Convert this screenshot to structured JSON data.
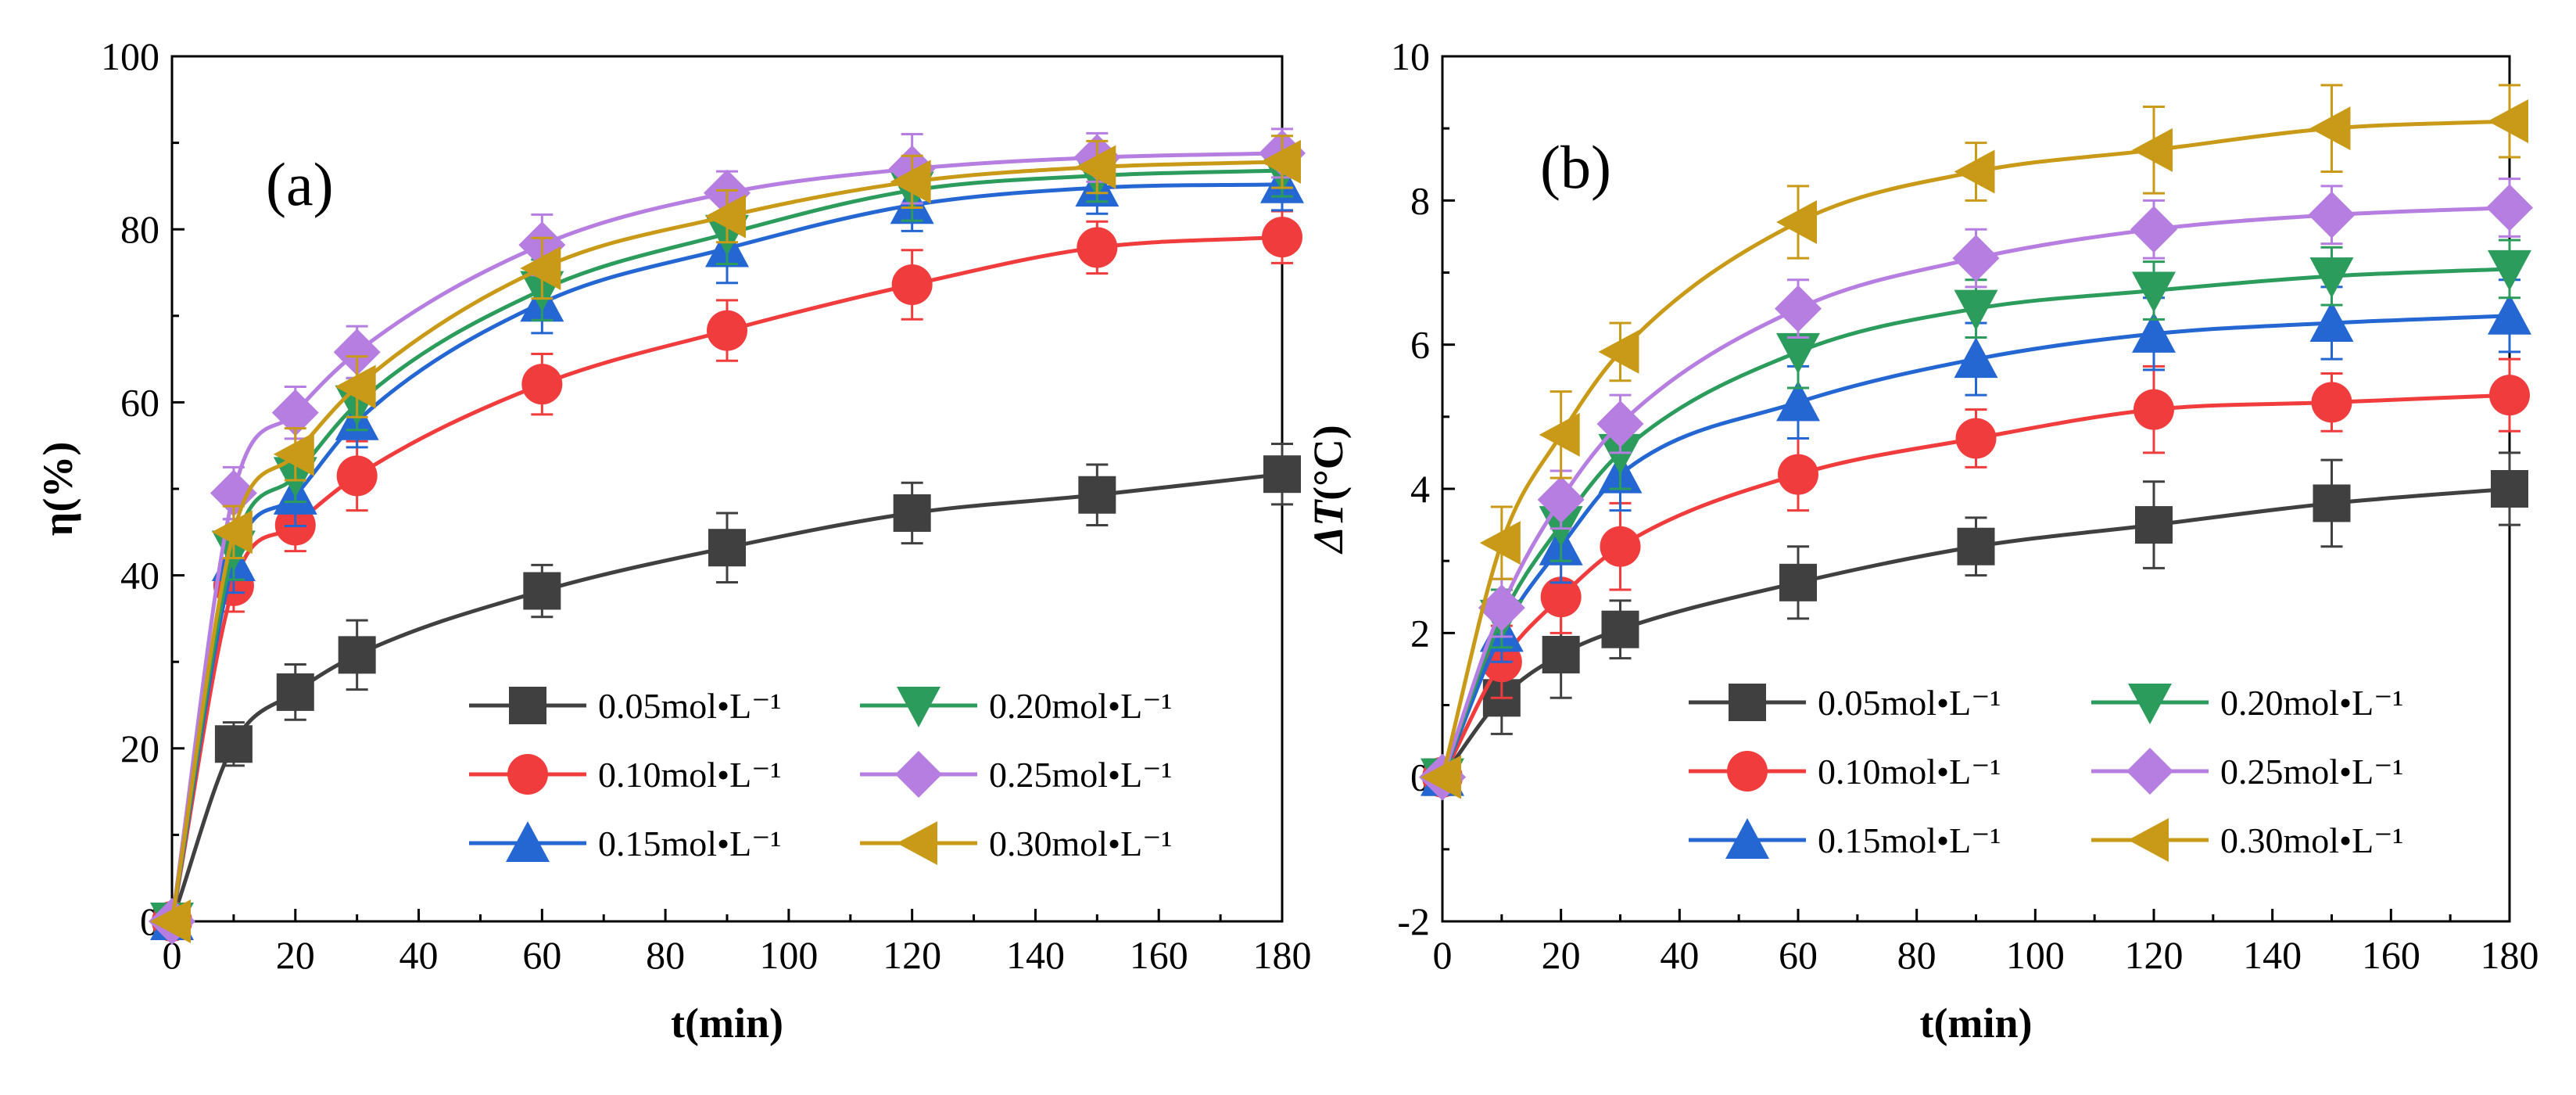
{
  "chart_data": [
    {
      "id": "a",
      "type": "line",
      "panel_label": "(a)",
      "title": "",
      "xlabel": "t(min)",
      "ylabel": "η(%)",
      "xlim": [
        0,
        180
      ],
      "ylim": [
        0,
        100
      ],
      "xticks": [
        0,
        20,
        40,
        60,
        80,
        100,
        120,
        140,
        160,
        180
      ],
      "yticks": [
        0,
        20,
        40,
        60,
        80,
        100
      ],
      "legend_placement": "bottom-right",
      "x": [
        0,
        10,
        20,
        30,
        60,
        90,
        120,
        150,
        180
      ],
      "series": [
        {
          "name": "0.05mol•L⁻¹",
          "color": "#404040",
          "marker": "square",
          "values": [
            0,
            20.5,
            26.5,
            30.8,
            38.2,
            43.2,
            47.2,
            49.3,
            51.7
          ],
          "errors": [
            0,
            2.5,
            3.2,
            4.0,
            3.0,
            4.0,
            3.5,
            3.5,
            3.5
          ]
        },
        {
          "name": "0.10mol•L⁻¹",
          "color": "#f03c3c",
          "marker": "circle",
          "values": [
            0,
            38.8,
            45.8,
            51.5,
            62.1,
            68.3,
            73.6,
            77.9,
            79.1
          ],
          "errors": [
            0,
            3.0,
            3.0,
            4.0,
            3.5,
            3.5,
            4.0,
            3.0,
            3.0
          ]
        },
        {
          "name": "0.15mol•L⁻¹",
          "color": "#2467d3",
          "marker": "triangle-up",
          "values": [
            0,
            41.5,
            49.2,
            57.8,
            71.5,
            77.8,
            82.8,
            84.8,
            85.2
          ],
          "errors": [
            0,
            3.5,
            3.5,
            3.0,
            3.5,
            4.0,
            3.0,
            3.0,
            3.0
          ]
        },
        {
          "name": "0.20mol•L⁻¹",
          "color": "#2b9c5c",
          "marker": "triangle-down",
          "values": [
            0,
            43.0,
            51.5,
            59.8,
            73.0,
            79.5,
            84.5,
            86.2,
            86.8
          ],
          "errors": [
            0,
            3.5,
            3.0,
            3.0,
            3.5,
            3.5,
            3.5,
            3.0,
            3.0
          ]
        },
        {
          "name": "0.25mol•L⁻¹",
          "color": "#b57ee0",
          "marker": "diamond",
          "values": [
            0,
            49.5,
            58.8,
            65.8,
            78.2,
            84.2,
            87.0,
            88.3,
            88.8
          ],
          "errors": [
            0,
            3.0,
            3.0,
            3.0,
            3.5,
            2.5,
            4.0,
            2.8,
            2.8
          ]
        },
        {
          "name": "0.30mol•L⁻¹",
          "color": "#c99a18",
          "marker": "triangle-left",
          "values": [
            0,
            45.0,
            54.0,
            61.8,
            75.5,
            81.5,
            85.5,
            87.2,
            87.8
          ],
          "errors": [
            0,
            3.0,
            3.0,
            3.5,
            3.5,
            3.0,
            3.0,
            3.0,
            3.0
          ]
        }
      ]
    },
    {
      "id": "b",
      "type": "line",
      "panel_label": "(b)",
      "title": "",
      "xlabel": "t(min)",
      "ylabel_italic": "ΔT",
      "ylabel_unit": "(°C)",
      "xlim": [
        0,
        180
      ],
      "ylim": [
        -2,
        10
      ],
      "xticks": [
        0,
        20,
        40,
        60,
        80,
        100,
        120,
        140,
        160,
        180
      ],
      "yticks": [
        -2,
        0,
        2,
        4,
        6,
        8,
        10
      ],
      "legend_placement": "bottom-right",
      "x": [
        0,
        10,
        20,
        30,
        60,
        90,
        120,
        150,
        180
      ],
      "series": [
        {
          "name": "0.05mol•L⁻¹",
          "color": "#404040",
          "marker": "square",
          "values": [
            0,
            1.1,
            1.7,
            2.05,
            2.7,
            3.2,
            3.5,
            3.8,
            4.0
          ],
          "errors": [
            0,
            0.5,
            0.6,
            0.4,
            0.5,
            0.4,
            0.6,
            0.6,
            0.5
          ]
        },
        {
          "name": "0.10mol•L⁻¹",
          "color": "#f03c3c",
          "marker": "circle",
          "values": [
            0,
            1.6,
            2.5,
            3.2,
            4.2,
            4.7,
            5.1,
            5.2,
            5.3
          ],
          "errors": [
            0,
            0.5,
            0.5,
            0.6,
            0.5,
            0.4,
            0.6,
            0.4,
            0.5
          ]
        },
        {
          "name": "0.15mol•L⁻¹",
          "color": "#2467d3",
          "marker": "triangle-up",
          "values": [
            0,
            2.0,
            3.2,
            4.2,
            5.2,
            5.8,
            6.15,
            6.3,
            6.4
          ],
          "errors": [
            0,
            0.4,
            0.5,
            0.5,
            0.5,
            0.5,
            0.5,
            0.5,
            0.5
          ]
        },
        {
          "name": "0.20mol•L⁻¹",
          "color": "#2b9c5c",
          "marker": "triangle-down",
          "values": [
            0,
            2.2,
            3.5,
            4.5,
            5.9,
            6.5,
            6.75,
            6.95,
            7.05
          ],
          "errors": [
            0,
            0.4,
            0.5,
            0.5,
            0.5,
            0.4,
            0.4,
            0.4,
            0.4
          ]
        },
        {
          "name": "0.25mol•L⁻¹",
          "color": "#b57ee0",
          "marker": "diamond",
          "values": [
            0,
            2.35,
            3.85,
            4.9,
            6.5,
            7.2,
            7.6,
            7.8,
            7.9
          ],
          "errors": [
            0,
            0.4,
            0.4,
            0.4,
            0.4,
            0.4,
            0.4,
            0.4,
            0.4
          ]
        },
        {
          "name": "0.30mol•L⁻¹",
          "color": "#c99a18",
          "marker": "triangle-left",
          "values": [
            0,
            3.25,
            4.75,
            5.9,
            7.7,
            8.4,
            8.7,
            9.0,
            9.1
          ],
          "errors": [
            0,
            0.5,
            0.6,
            0.4,
            0.5,
            0.4,
            0.6,
            0.6,
            0.5
          ]
        }
      ]
    }
  ]
}
